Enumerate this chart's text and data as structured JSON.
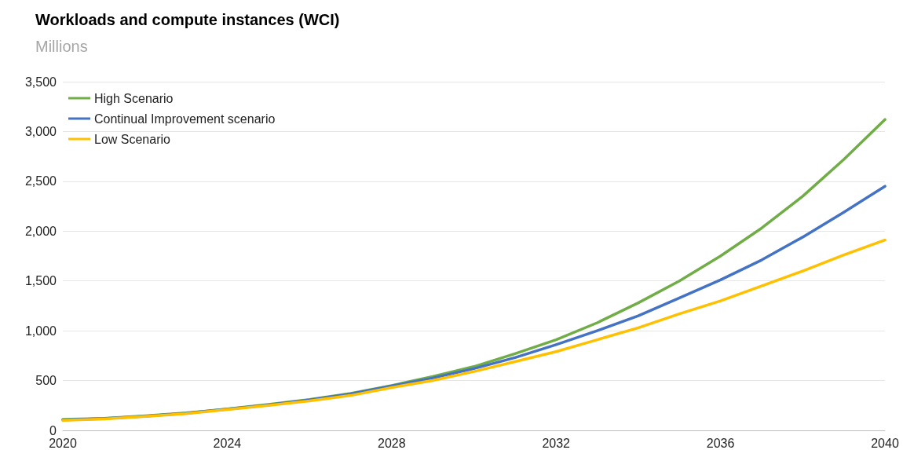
{
  "chart_data": {
    "type": "line",
    "title": "Workloads and compute instances (WCI)",
    "subtitle": "Millions",
    "x": [
      2020,
      2021,
      2022,
      2023,
      2024,
      2025,
      2026,
      2027,
      2028,
      2029,
      2030,
      2031,
      2032,
      2033,
      2034,
      2035,
      2036,
      2037,
      2038,
      2039,
      2040
    ],
    "series": [
      {
        "name": "High Scenario",
        "color": "#70ad47",
        "values": [
          110,
          120,
          145,
          175,
          215,
          260,
          310,
          370,
          450,
          540,
          640,
          770,
          910,
          1080,
          1280,
          1500,
          1750,
          2030,
          2350,
          2720,
          3120
        ]
      },
      {
        "name": "Continual Improvement scenario",
        "color": "#4472c4",
        "values": [
          105,
          118,
          142,
          172,
          212,
          255,
          305,
          365,
          445,
          525,
          620,
          730,
          860,
          1000,
          1150,
          1330,
          1510,
          1710,
          1940,
          2190,
          2450
        ]
      },
      {
        "name": "Low Scenario",
        "color": "#ffc000",
        "values": [
          100,
          115,
          140,
          168,
          208,
          250,
          295,
          350,
          430,
          500,
          590,
          690,
          790,
          910,
          1030,
          1170,
          1300,
          1450,
          1600,
          1760,
          1910
        ]
      }
    ],
    "xlim": [
      2020,
      2040
    ],
    "xticks": [
      2020,
      2024,
      2028,
      2032,
      2036,
      2040
    ],
    "ylim": [
      0,
      3500
    ],
    "yticks": [
      0,
      500,
      {
        "value": 1000,
        "label": "1,000"
      },
      {
        "value": 1500,
        "label": "1,500"
      },
      {
        "value": 2000,
        "label": "2,000"
      },
      {
        "value": 2500,
        "label": "2,500"
      },
      {
        "value": 3000,
        "label": "3,000"
      },
      {
        "value": 3500,
        "label": "3,500"
      }
    ],
    "grid": "y",
    "legend": "top left",
    "marker": "none",
    "line_style": "solid"
  }
}
